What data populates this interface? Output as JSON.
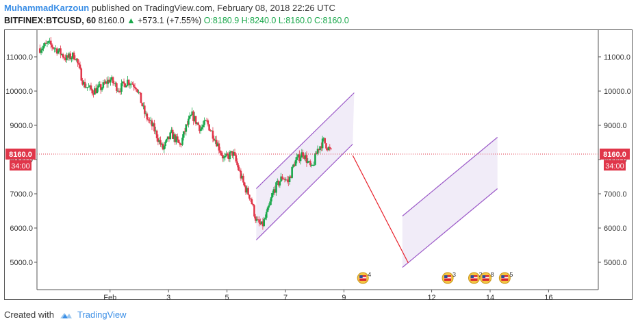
{
  "header": {
    "author": "MuhammadKarzoun",
    "published_text": "published on TradingView.com, February 08, 2018 22:26 UTC"
  },
  "symbol_line": {
    "symbol": "BITFINEX:BTCUSD, 60",
    "last": "8160.0",
    "change": "+573.1 (+7.55%)",
    "open": "O:8180.9",
    "high": "H:8240.0",
    "low": "L:8160.0",
    "close": "C:8160.0"
  },
  "price_tag": {
    "price": "8160.0",
    "countdown": "34:00"
  },
  "footer": {
    "created_with": "Created with",
    "brand": "TradingView"
  },
  "colors": {
    "up": "#18a74a",
    "down": "#e0364a",
    "channel": "#9b59c8",
    "channel_fill": "#ede7f6",
    "target_line": "#e8202a",
    "price_line": "#e0364a",
    "accent": "#3a8ee6"
  },
  "chart_data": {
    "type": "candlestick",
    "ylim": [
      4200,
      11800
    ],
    "y_ticks": [
      "11000.0",
      "10000.0",
      "9000.0",
      "8000.0",
      "7000.0",
      "6000.0",
      "5000.0"
    ],
    "y_tick_values": [
      11000,
      10000,
      9000,
      8000,
      7000,
      6000,
      5000
    ],
    "x_ticks": [
      "Feb",
      "3",
      "5",
      "7",
      "9",
      "12",
      "14",
      "16"
    ],
    "x_tick_days": [
      1,
      3,
      5,
      7,
      9,
      12,
      14,
      16
    ],
    "xlim_days": [
      -1.5,
      17.7
    ],
    "price_anchor_points": [
      [
        -1.4,
        11250
      ],
      [
        -1.1,
        11380
      ],
      [
        -0.8,
        11200
      ],
      [
        -0.5,
        10950
      ],
      [
        -0.2,
        11050
      ],
      [
        0.1,
        10200
      ],
      [
        0.4,
        10000
      ],
      [
        0.7,
        10100
      ],
      [
        1.0,
        10350
      ],
      [
        1.3,
        10050
      ],
      [
        1.6,
        10300
      ],
      [
        1.9,
        10150
      ],
      [
        2.2,
        9300
      ],
      [
        2.5,
        8900
      ],
      [
        2.8,
        8300
      ],
      [
        3.1,
        8750
      ],
      [
        3.4,
        8400
      ],
      [
        3.6,
        8950
      ],
      [
        3.8,
        9300
      ],
      [
        4.1,
        8900
      ],
      [
        4.3,
        9100
      ],
      [
        4.6,
        8600
      ],
      [
        4.9,
        8000
      ],
      [
        5.2,
        8200
      ],
      [
        5.4,
        7700
      ],
      [
        5.6,
        7200
      ],
      [
        5.8,
        6900
      ],
      [
        6.0,
        6200
      ],
      [
        6.2,
        6050
      ],
      [
        6.4,
        6500
      ],
      [
        6.6,
        7100
      ],
      [
        6.9,
        7500
      ],
      [
        7.1,
        7350
      ],
      [
        7.3,
        7900
      ],
      [
        7.6,
        8200
      ],
      [
        7.9,
        7700
      ],
      [
        8.1,
        8300
      ],
      [
        8.3,
        8550
      ],
      [
        8.6,
        8160
      ]
    ],
    "channel_current": {
      "lower": [
        [
          6.0,
          5650
        ],
        [
          9.3,
          8450
        ]
      ],
      "upper": [
        [
          6.0,
          7150
        ],
        [
          9.35,
          9950
        ]
      ]
    },
    "target_line": [
      [
        9.3,
        8120
      ],
      [
        11.2,
        4980
      ]
    ],
    "channel_projected": {
      "lower": [
        [
          11.0,
          4850
        ],
        [
          14.25,
          7150
        ]
      ],
      "upper": [
        [
          11.0,
          6350
        ],
        [
          14.25,
          8650
        ]
      ]
    },
    "last_price": 8160,
    "event_markers": [
      {
        "day": 9.65,
        "label": "4"
      },
      {
        "day": 12.55,
        "label": "3"
      },
      {
        "day": 13.45,
        "label": "2"
      },
      {
        "day": 13.85,
        "label": "8"
      },
      {
        "day": 14.5,
        "label": "5"
      }
    ]
  }
}
